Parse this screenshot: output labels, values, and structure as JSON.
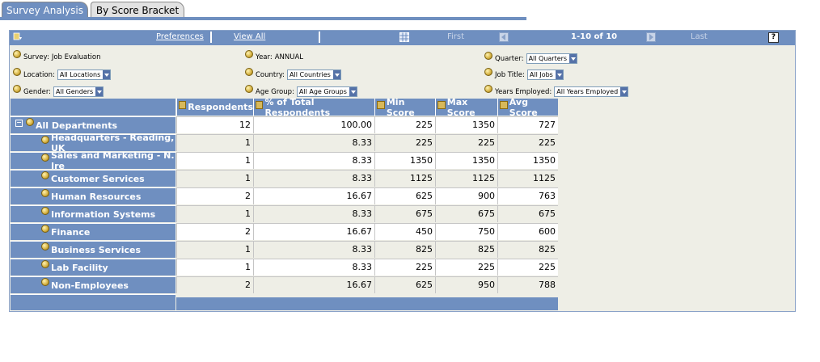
{
  "tabs": [
    {
      "label": "Survey Analysis",
      "active": true
    },
    {
      "label": "By Score Bracket",
      "active": false
    }
  ],
  "nav": {
    "preferences": "Preferences",
    "view_all": "View All",
    "first": "First",
    "range": "1-10 of 10",
    "last": "Last",
    "help": "?"
  },
  "filters": {
    "survey": {
      "label": "Survey:",
      "value": "Job Evaluation"
    },
    "year": {
      "label": "Year:",
      "value": "ANNUAL"
    },
    "quarter": {
      "label": "Quarter:",
      "value": "All Quarters"
    },
    "location": {
      "label": "Location:",
      "value": "All Locations"
    },
    "country": {
      "label": "Country:",
      "value": "All Countries"
    },
    "job_title": {
      "label": "Job Title:",
      "value": "All Jobs"
    },
    "gender": {
      "label": "Gender:",
      "value": "All Genders"
    },
    "age_group": {
      "label": "Age Group:",
      "value": "All Age Groups"
    },
    "years_employed": {
      "label": "Years Employed:",
      "value": "All Years Employed"
    }
  },
  "columns": [
    "Respondents",
    "% of Total Respondents",
    "Min Score",
    "Max Score",
    "Avg Score"
  ],
  "rows": [
    {
      "label": "All Departments",
      "values": [
        "12",
        "100.00",
        "225",
        "1350",
        "727"
      ]
    },
    {
      "label": "Headquarters - Reading, UK",
      "values": [
        "1",
        "8.33",
        "225",
        "225",
        "225"
      ]
    },
    {
      "label": "Sales and Marketing - N. Ire",
      "values": [
        "1",
        "8.33",
        "1350",
        "1350",
        "1350"
      ]
    },
    {
      "label": "Customer Services",
      "values": [
        "1",
        "8.33",
        "1125",
        "1125",
        "1125"
      ]
    },
    {
      "label": "Human Resources",
      "values": [
        "2",
        "16.67",
        "625",
        "900",
        "763"
      ]
    },
    {
      "label": "Information Systems",
      "values": [
        "1",
        "8.33",
        "675",
        "675",
        "675"
      ]
    },
    {
      "label": "Finance",
      "values": [
        "2",
        "16.67",
        "450",
        "750",
        "600"
      ]
    },
    {
      "label": "Business Services",
      "values": [
        "1",
        "8.33",
        "825",
        "825",
        "825"
      ]
    },
    {
      "label": "Lab Facility",
      "values": [
        "1",
        "8.33",
        "225",
        "225",
        "225"
      ]
    },
    {
      "label": "Non-Employees",
      "values": [
        "2",
        "16.67",
        "625",
        "950",
        "788"
      ]
    }
  ],
  "colors": {
    "header_blue": "#6f8fc0",
    "cell_white": "#ffffff",
    "cell_alt": "#eeeee6"
  }
}
